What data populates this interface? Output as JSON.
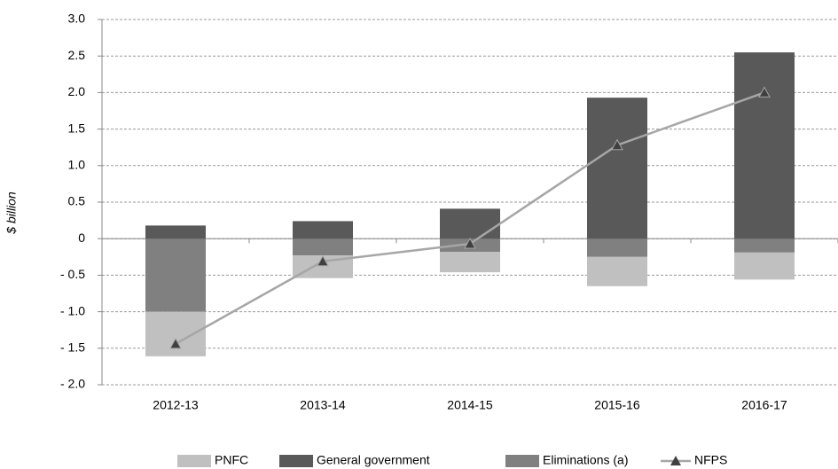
{
  "chart_data": {
    "type": "stacked-bar-line",
    "y_label": "$ billion",
    "categories": [
      "2012-13",
      "2013-14",
      "2014-15",
      "2015-16",
      "2016-17"
    ],
    "series": [
      {
        "name": "PNFC",
        "color": "#c0c0c0",
        "kind": "bar",
        "values": [
          -0.61,
          -0.31,
          -0.28,
          -0.4,
          -0.37
        ]
      },
      {
        "name": "General government",
        "color": "#595959",
        "kind": "bar",
        "values": [
          0.18,
          0.24,
          0.41,
          1.93,
          2.55
        ]
      },
      {
        "name": "Eliminations (a)",
        "color": "#808080",
        "kind": "bar",
        "values": [
          -1.0,
          -0.23,
          -0.18,
          -0.25,
          -0.19
        ]
      },
      {
        "name": "NFPS",
        "color": "#a6a6a6",
        "marker_color": "#404040",
        "kind": "line",
        "values": [
          -1.44,
          -0.31,
          -0.07,
          1.28,
          2.0
        ]
      }
    ],
    "ylim": [
      -2,
      3
    ],
    "yticks": [
      {
        "value": -2,
        "label": "- 2.0"
      },
      {
        "value": -1.5,
        "label": "- 1.5"
      },
      {
        "value": -1,
        "label": "- 1.0"
      },
      {
        "value": -0.5,
        "label": "- 0.5"
      },
      0,
      0.5,
      {
        "value": 1,
        "label": "1.0"
      },
      1.5,
      {
        "value": 2,
        "label": "2.0"
      },
      2.5,
      {
        "value": 3,
        "label": "3.0"
      }
    ],
    "grid": true
  }
}
